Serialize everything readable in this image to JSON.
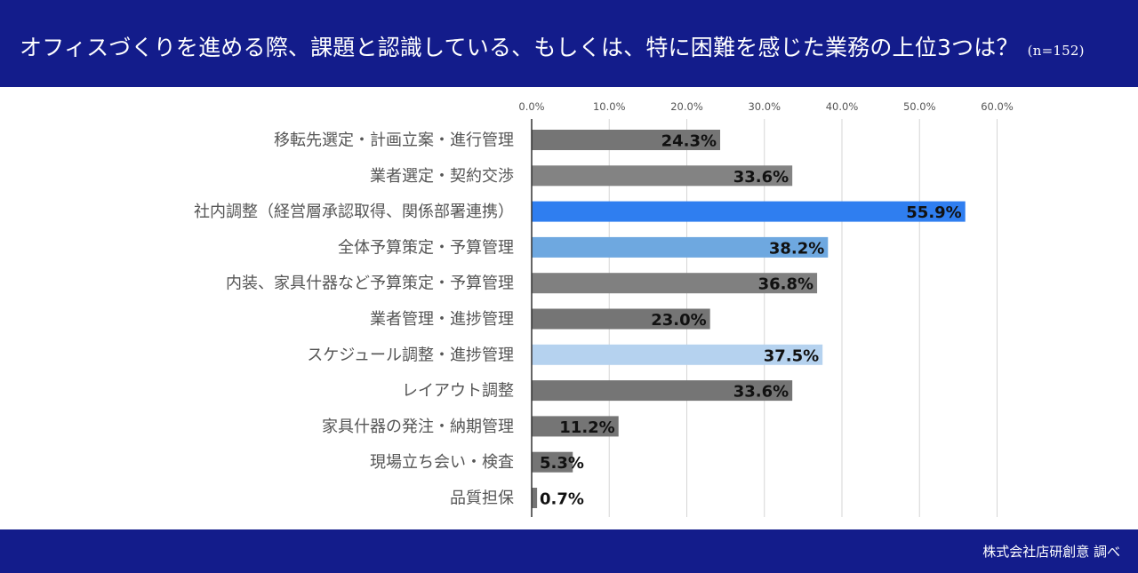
{
  "header": {
    "title": "オフィスづくりを進める際、課題と認識している、もしくは、特に困難を感じた業務の上位3つは？",
    "sample": "(n=152)"
  },
  "footer": {
    "source": "株式会社店研創意 調べ"
  },
  "chart_data": {
    "type": "bar",
    "orientation": "horizontal",
    "xlim": [
      0,
      60
    ],
    "x_ticks": [
      "0.0%",
      "10.0%",
      "20.0%",
      "30.0%",
      "40.0%",
      "50.0%",
      "60.0%"
    ],
    "x_tick_values": [
      0,
      10,
      20,
      30,
      40,
      50,
      60
    ],
    "grid": true,
    "categories": [
      "移転先選定・計画立案・進行管理",
      "業者選定・契約交渉",
      "社内調整（経営層承認取得、関係部署連携）",
      "全体予算策定・予算管理",
      "内装、家具什器など予算策定・予算管理",
      "業者管理・進捗管理",
      "スケジュール調整・進捗管理",
      "レイアウト調整",
      "家具什器の発注・納期管理",
      "現場立ち会い・検査",
      "品質担保"
    ],
    "values": [
      24.3,
      33.6,
      55.9,
      38.2,
      36.8,
      23.0,
      37.5,
      33.6,
      11.2,
      5.3,
      0.7
    ],
    "value_labels": [
      "24.3%",
      "33.6%",
      "55.9%",
      "38.2%",
      "36.8%",
      "23.0%",
      "37.5%",
      "33.6%",
      "11.2%",
      "5.3%",
      "0.7%"
    ],
    "colors": [
      "#757575",
      "#838383",
      "#2f7ef0",
      "#6ea8e0",
      "#808080",
      "#757575",
      "#b5d2ef",
      "#757575",
      "#757575",
      "#757575",
      "#757575"
    ]
  }
}
